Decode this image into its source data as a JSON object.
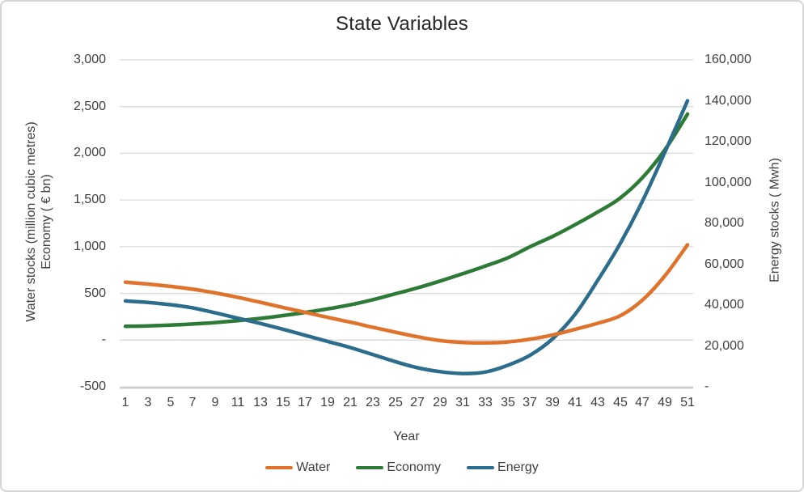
{
  "chart_data": {
    "type": "line",
    "title": "State Variables",
    "grid": true,
    "legend_position": "bottom",
    "colors": {
      "gridline": "#d9d9d9",
      "axis_line": "#bfbfbf",
      "text": "#3f3f3f",
      "title_text": "#262626"
    },
    "axes": {
      "left": {
        "title_lines": [
          "Water stocks  (million cubic metres)",
          "Economy ( € bn)"
        ],
        "min": -500,
        "max": 3000,
        "tick_values": [
          3000,
          2500,
          2000,
          1500,
          1000,
          500,
          0,
          -500
        ],
        "tick_labels": [
          "3,000",
          "2,500",
          "2,000",
          "1,500",
          "1,000",
          "500",
          "-",
          "-500"
        ]
      },
      "right": {
        "title": "Energy stocks  ( Mwh)",
        "min": 0,
        "max": 160000,
        "tick_values": [
          160000,
          140000,
          120000,
          100000,
          80000,
          60000,
          40000,
          20000,
          0
        ],
        "tick_labels": [
          "160,000",
          "140,000",
          "120,000",
          "100,000",
          "80,000",
          "60,000",
          "40,000",
          "20,000",
          "-"
        ]
      },
      "x": {
        "title": "Year",
        "min": 1,
        "max": 51
      }
    },
    "x": [
      1,
      3,
      5,
      7,
      9,
      11,
      13,
      15,
      17,
      19,
      21,
      23,
      25,
      27,
      29,
      31,
      33,
      35,
      37,
      39,
      41,
      43,
      45,
      47,
      49,
      51
    ],
    "series": [
      {
        "name": "Water",
        "axis": "left",
        "color": "#e0732c",
        "values": [
          620,
          600,
          575,
          545,
          505,
          458,
          405,
          350,
          297,
          243,
          192,
          138,
          85,
          35,
          -5,
          -25,
          -30,
          -20,
          10,
          55,
          115,
          180,
          260,
          430,
          690,
          1020
        ]
      },
      {
        "name": "Economy",
        "axis": "left",
        "color": "#2c7a36",
        "values": [
          148,
          152,
          160,
          172,
          188,
          208,
          232,
          262,
          296,
          334,
          378,
          432,
          495,
          560,
          632,
          710,
          792,
          880,
          1000,
          1110,
          1235,
          1370,
          1520,
          1740,
          2040,
          2420
        ]
      },
      {
        "name": "Energy",
        "axis": "right",
        "color": "#2c6c8c",
        "values": [
          42000,
          41300,
          40200,
          38600,
          36200,
          33600,
          31000,
          28200,
          25200,
          22200,
          19200,
          15800,
          12300,
          9300,
          7400,
          6500,
          7200,
          10500,
          15500,
          23500,
          35500,
          52000,
          70000,
          91000,
          115000,
          140000
        ]
      }
    ]
  }
}
